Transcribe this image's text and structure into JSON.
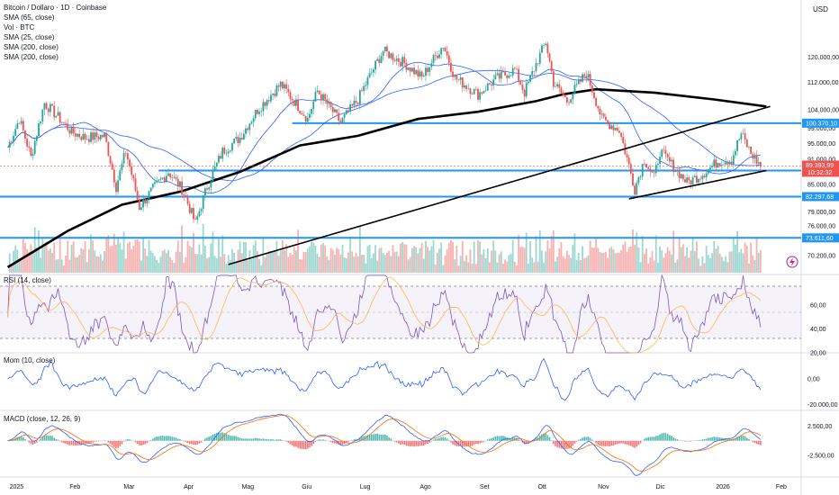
{
  "header": {
    "title": "Bitcoin / Dollaro · 1D · Coinbase",
    "currency": "USD",
    "indicators": [
      "SMA (65, close)",
      "Vol · BTC",
      "SMA (25, close)",
      "SMA (200, close)",
      "SMA (200, close)"
    ]
  },
  "panels": {
    "rsi_title": "RSI (14, close)",
    "mom_title": "Mom (10, close)",
    "macd_title": "MACD (close, 12, 26, 9)"
  },
  "colors": {
    "up": "#26a69a",
    "down": "#ef5350",
    "sma_blue": "#2962ff",
    "level_blue": "#2196f3",
    "black": "#000000",
    "rsi_line": "#7e57c2",
    "rsi_signal": "#ffb74d",
    "macd_line": "#2962ff",
    "macd_signal": "#ff6d00",
    "price_tag": "#ef5350"
  },
  "chart_data": [
    {
      "type": "candlestick",
      "title": "Bitcoin / Dollaro · 1D · Coinbase",
      "ylabel": "USD",
      "log_scale": true,
      "ylim": [
        67000,
        140000
      ],
      "y_ticks": [
        70200,
        76000,
        79000,
        82000,
        85000,
        88000,
        91000,
        95000,
        99000,
        104000,
        112000,
        120000
      ],
      "y_tick_labels": [
        "70.200,00",
        "76.000,00",
        "79.000,00",
        "82.000,00",
        "85.000,00",
        "88.000,00",
        "91.000,00",
        "95.000,00",
        "99.000,00",
        "104.000,00",
        "112.000,00",
        "120.000,00"
      ],
      "x_labels": [
        "2025",
        "Feb",
        "Mar",
        "Apr",
        "Mag",
        "Giu",
        "Lug",
        "Ago",
        "Set",
        "Ott",
        "Nov",
        "Dic",
        "2026",
        "Feb"
      ],
      "price_path": [
        [
          "2025-01-01",
          94000
        ],
        [
          "2025-01-07",
          101500
        ],
        [
          "2025-01-13",
          91500
        ],
        [
          "2025-01-20",
          106000
        ],
        [
          "2025-01-27",
          102000
        ],
        [
          "2025-02-03",
          98000
        ],
        [
          "2025-02-10",
          96500
        ],
        [
          "2025-02-20",
          97000
        ],
        [
          "2025-02-26",
          84500
        ],
        [
          "2025-03-03",
          93000
        ],
        [
          "2025-03-10",
          80000
        ],
        [
          "2025-03-17",
          84000
        ],
        [
          "2025-03-25",
          88000
        ],
        [
          "2025-04-01",
          84000
        ],
        [
          "2025-04-08",
          76500
        ],
        [
          "2025-04-14",
          84500
        ],
        [
          "2025-04-22",
          93000
        ],
        [
          "2025-05-01",
          96500
        ],
        [
          "2025-05-10",
          104000
        ],
        [
          "2025-05-22",
          111500
        ],
        [
          "2025-06-05",
          101500
        ],
        [
          "2025-06-10",
          109500
        ],
        [
          "2025-06-22",
          100500
        ],
        [
          "2025-07-01",
          107000
        ],
        [
          "2025-07-14",
          122000
        ],
        [
          "2025-07-25",
          118000
        ],
        [
          "2025-08-03",
          113500
        ],
        [
          "2025-08-14",
          124000
        ],
        [
          "2025-08-20",
          113500
        ],
        [
          "2025-09-01",
          108500
        ],
        [
          "2025-09-10",
          113000
        ],
        [
          "2025-09-20",
          116000
        ],
        [
          "2025-09-25",
          109000
        ],
        [
          "2025-10-06",
          125000
        ],
        [
          "2025-10-10",
          112000
        ],
        [
          "2025-10-17",
          106500
        ],
        [
          "2025-10-27",
          115000
        ],
        [
          "2025-11-04",
          101500
        ],
        [
          "2025-11-13",
          98500
        ],
        [
          "2025-11-21",
          84000
        ],
        [
          "2025-11-26",
          91000
        ],
        [
          "2025-12-01",
          86500
        ],
        [
          "2025-12-04",
          93000
        ],
        [
          "2025-12-18",
          85500
        ],
        [
          "2025-12-26",
          87500
        ],
        [
          "2026-01-03",
          90500
        ],
        [
          "2026-01-10",
          91000
        ],
        [
          "2026-01-15",
          97500
        ],
        [
          "2026-01-20",
          92500
        ],
        [
          "2026-01-25",
          89400
        ]
      ],
      "moving_averages": [
        {
          "period": 200,
          "points": [
            [
              "2025-01-01",
              68000
            ],
            [
              "2025-02-01",
              75000
            ],
            [
              "2025-03-01",
              80500
            ],
            [
              "2025-04-01",
              83500
            ],
            [
              "2025-05-01",
              88000
            ],
            [
              "2025-06-01",
              94500
            ],
            [
              "2025-07-01",
              97000
            ],
            [
              "2025-08-01",
              101500
            ],
            [
              "2025-09-01",
              103500
            ],
            [
              "2025-10-01",
              106500
            ],
            [
              "2025-10-15",
              108500
            ],
            [
              "2025-11-01",
              110000
            ],
            [
              "2025-12-01",
              109000
            ],
            [
              "2026-01-01",
              107000
            ],
            [
              "2026-01-28",
              105000
            ]
          ]
        }
      ],
      "horizontal_levels": [
        {
          "value": 100370.1,
          "label": "100.370,10"
        },
        {
          "value": 88304.1,
          "label": "88.304,10"
        },
        {
          "value": 82297.68,
          "label": "82.297,68"
        },
        {
          "value": 73611.6,
          "label": "73.611,60"
        }
      ],
      "trendlines": [
        {
          "from": [
            "2025-04-25",
            68500
          ],
          "to": [
            "2026-01-30",
            105000
          ]
        },
        {
          "from": [
            "2025-11-18",
            81800
          ],
          "to": [
            "2026-01-28",
            88300
          ]
        }
      ],
      "last_price": {
        "value": 89393.99,
        "label": "89.393,99",
        "countdown": "10:32:32"
      }
    },
    {
      "type": "line",
      "title": "RSI (14, close)",
      "ylim": [
        20,
        85
      ],
      "y_ticks": [
        20,
        40,
        60
      ],
      "y_tick_labels": [
        "20,00",
        "40,00",
        "60,00"
      ],
      "bands": [
        30,
        50,
        70
      ]
    },
    {
      "type": "line",
      "title": "Mom (10, close)",
      "ylim": [
        -24000,
        20000
      ],
      "y_ticks": [
        0,
        -20000
      ],
      "y_tick_labels": [
        "0,00",
        "-20.000,00"
      ]
    },
    {
      "type": "bar",
      "title": "MACD (close, 12, 26, 9)",
      "ylim": [
        -6000,
        5000
      ],
      "y_ticks": [
        2500,
        -2500
      ],
      "y_tick_labels": [
        "2.500,00",
        "-2.500,00"
      ]
    }
  ]
}
